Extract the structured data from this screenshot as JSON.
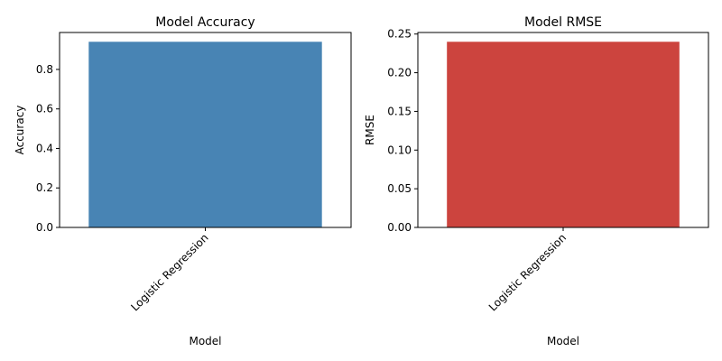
{
  "chart_data": [
    {
      "type": "bar",
      "title": "Model Accuracy",
      "xlabel": "Model",
      "ylabel": "Accuracy",
      "categories": [
        "Logistic Regression"
      ],
      "values": [
        0.94
      ],
      "ylim": [
        0,
        0.987
      ],
      "yticks": [
        0.0,
        0.2,
        0.4,
        0.6,
        0.8
      ],
      "ytick_labels": [
        "0.0",
        "0.2",
        "0.4",
        "0.6",
        "0.8"
      ],
      "bar_color": "#4884b4",
      "grid": false,
      "legend": "none"
    },
    {
      "type": "bar",
      "title": "Model RMSE",
      "xlabel": "Model",
      "ylabel": "RMSE",
      "categories": [
        "Logistic Regression"
      ],
      "values": [
        0.24
      ],
      "ylim": [
        0,
        0.252
      ],
      "yticks": [
        0.0,
        0.05,
        0.1,
        0.15,
        0.2,
        0.25
      ],
      "ytick_labels": [
        "0.00",
        "0.05",
        "0.10",
        "0.15",
        "0.20",
        "0.25"
      ],
      "bar_color": "#cc443e",
      "grid": false,
      "legend": "none"
    }
  ]
}
